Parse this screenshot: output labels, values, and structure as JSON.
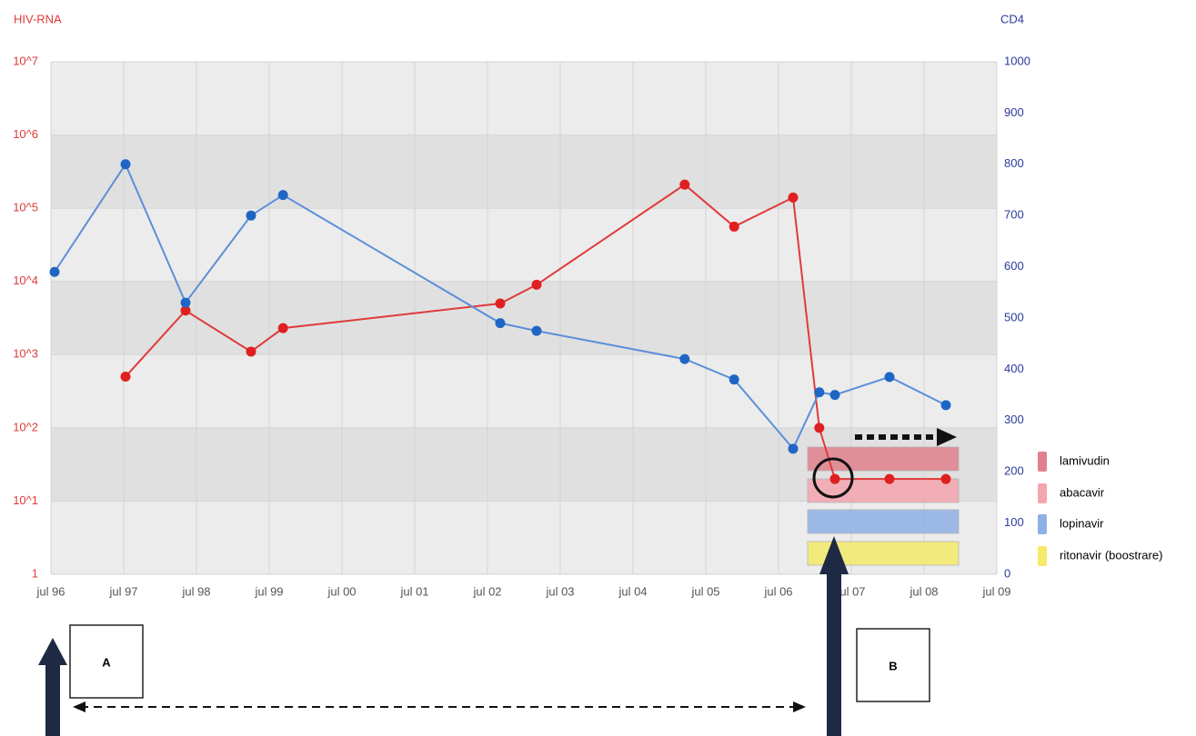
{
  "chart_data": {
    "type": "line",
    "y_label": "HIV-RNA",
    "y2_label": "CD4",
    "log_y": true,
    "grid": true,
    "xlim": [
      1996.5,
      2009.5
    ],
    "xticks": [
      {
        "value": 1996.5,
        "label": "jul 96"
      },
      {
        "value": 1997.5,
        "label": "jul 97"
      },
      {
        "value": 1998.5,
        "label": "jul 98"
      },
      {
        "value": 1999.5,
        "label": "jul 99"
      },
      {
        "value": 2000.5,
        "label": "jul 00"
      },
      {
        "value": 2001.5,
        "label": "jul 01"
      },
      {
        "value": 2002.5,
        "label": "jul 02"
      },
      {
        "value": 2003.5,
        "label": "jul 03"
      },
      {
        "value": 2004.5,
        "label": "jul 04"
      },
      {
        "value": 2005.5,
        "label": "jul 05"
      },
      {
        "value": 2006.5,
        "label": "jul 06"
      },
      {
        "value": 2007.5,
        "label": "jul 07"
      },
      {
        "value": 2008.5,
        "label": "jul 08"
      },
      {
        "value": 2009.5,
        "label": "jul 09"
      }
    ],
    "ylim": [
      1,
      10000000
    ],
    "yticks": [
      1,
      {
        "value": 10,
        "label": "10^1"
      },
      {
        "value": 100,
        "label": "10^2"
      },
      {
        "value": 1000,
        "label": "10^3"
      },
      {
        "value": 10000,
        "label": "10^4"
      },
      {
        "value": 100000,
        "label": "10^5"
      },
      {
        "value": 1000000,
        "label": "10^6"
      },
      {
        "value": 10000000,
        "label": "10^7"
      }
    ],
    "y2lim": [
      0,
      1000
    ],
    "y2ticks": [
      0,
      100,
      200,
      300,
      400,
      500,
      600,
      700,
      800,
      900,
      1000
    ],
    "series": [
      {
        "name": "HIV-RNA",
        "color": "#e03a3a",
        "x": [
          1997.525,
          1998.35,
          1999.25,
          1999.69,
          2002.675,
          2003.175,
          2005.21,
          2005.89,
          2006.7,
          2007.06,
          2007.275,
          2008.025,
          2008.8
        ],
        "values": [
          500,
          4000,
          1100,
          2300,
          5000,
          9000,
          210000,
          56000,
          140000,
          100,
          20,
          20,
          20
        ]
      },
      {
        "name": "CD4",
        "color": "#5b8fd9",
        "axis": "y2",
        "x": [
          1996.55,
          1997.525,
          1998.35,
          1999.25,
          1999.69,
          2002.675,
          2003.175,
          2005.21,
          2005.89,
          2006.7,
          2007.06,
          2007.275,
          2008.025,
          2008.8
        ],
        "values": [
          590,
          800,
          530,
          700,
          740,
          490,
          475,
          420,
          380,
          245,
          355,
          350,
          385,
          330
        ]
      }
    ],
    "treatments": [
      {
        "name": "lamivudin",
        "color": "#e0808c",
        "start": 2006.9,
        "end": 2008.975
      },
      {
        "name": "abacavir",
        "color": "#f4a6b0",
        "start": 2006.9,
        "end": 2008.975
      },
      {
        "name": "lopinavir",
        "color": "#8fb0e6",
        "start": 2006.9,
        "end": 2008.975
      },
      {
        "name": "ritonavir (boostrare)",
        "color": "#f5ea6a",
        "start": 2006.9,
        "end": 2008.975
      }
    ],
    "annotations": [
      "A",
      "B"
    ]
  }
}
